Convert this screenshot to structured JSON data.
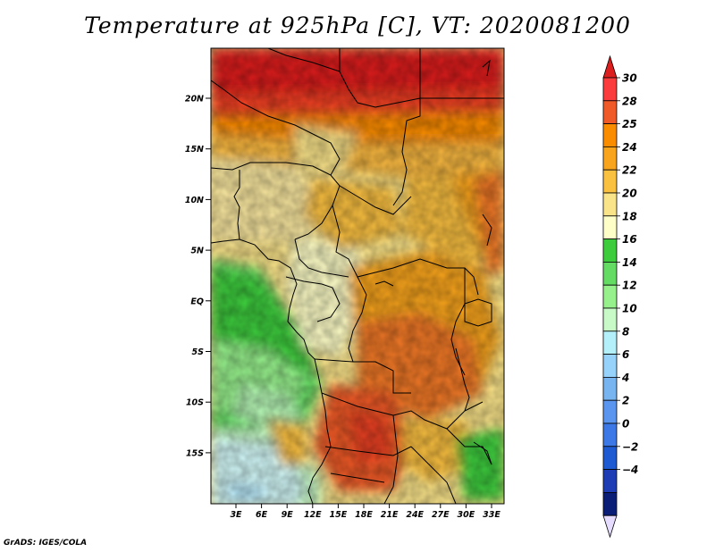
{
  "title": "Temperature at 925hPa [C], VT: 2020081200",
  "credit": "GrADS: IGES/COLA",
  "map": {
    "lat_labels": [
      "20N",
      "15N",
      "10N",
      "5N",
      "EQ",
      "5S",
      "10S",
      "15S"
    ],
    "lon_labels": [
      "3E",
      "6E",
      "9E",
      "12E",
      "15E",
      "18E",
      "21E",
      "24E",
      "27E",
      "30E",
      "33E"
    ],
    "lon_range": [
      0,
      35
    ],
    "lat_range": [
      -19.5,
      25
    ]
  },
  "colorbar": {
    "labels": [
      "30",
      "28",
      "25",
      "24",
      "22",
      "20",
      "18",
      "16",
      "14",
      "12",
      "10",
      "8",
      "6",
      "4",
      "2",
      "0",
      "−2",
      "−4"
    ],
    "colors": [
      "#fa3c3c",
      "#f05a28",
      "#fa8c00",
      "#f8a41c",
      "#fac040",
      "#fae48a",
      "#fefec8",
      "#3ccc3c",
      "#64dc64",
      "#96f08c",
      "#c8fac8",
      "#b4f0fa",
      "#96d2fa",
      "#78b4f0",
      "#5a96f0",
      "#3c78e6",
      "#1e5ad2",
      "#1e3cb4",
      "#0a1e78"
    ],
    "top_color": "#dc1e1e",
    "bottom_color": "#e6dcff"
  }
}
